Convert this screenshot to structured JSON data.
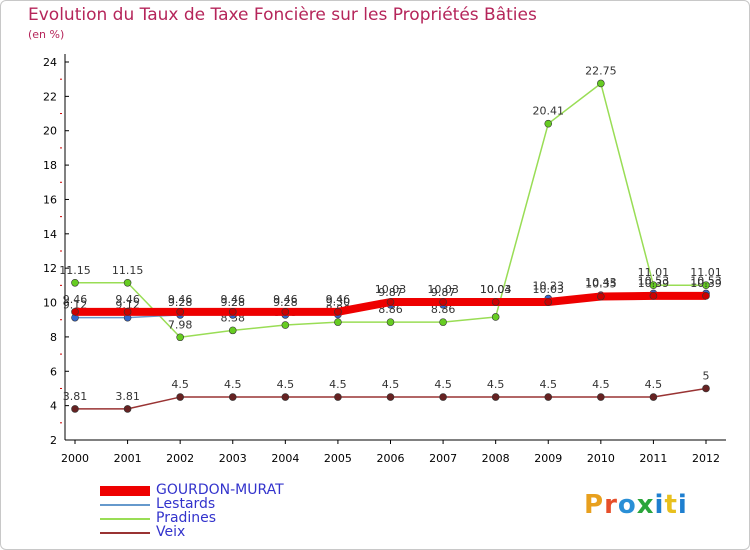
{
  "header": {
    "title": "Evolution du Taux de Taxe Foncière sur les Propriétés Bâties",
    "subtitle": "(en %)"
  },
  "logo": {
    "text": "Proxiti"
  },
  "chart_data": {
    "type": "line",
    "title": "Evolution du Taux de Taxe Foncière sur les Propriétés Bâties",
    "ylabel": "(en %)",
    "xlabel": "",
    "ylim": [
      2,
      24
    ],
    "yticks": [
      2,
      4,
      6,
      8,
      10,
      12,
      14,
      16,
      18,
      20,
      22,
      24
    ],
    "grid": false,
    "legend_position": "bottom-left",
    "categories": [
      "2000",
      "2001",
      "2002",
      "2003",
      "2004",
      "2005",
      "2006",
      "2007",
      "2008",
      "2009",
      "2010",
      "2011",
      "2012"
    ],
    "series": [
      {
        "name": "Pradines",
        "color": "#99dd55",
        "marker": "#66cc22",
        "values": [
          11.15,
          11.15,
          7.98,
          8.38,
          8.69,
          8.86,
          8.86,
          8.86,
          9.16,
          20.41,
          22.75,
          11.01,
          11.01
        ],
        "labels": [
          "11.15",
          "11.15",
          "7.98",
          "8.38",
          "8.69",
          "8.86",
          "8.86",
          "8.86",
          "",
          "20.41",
          "22.75",
          "11.01",
          "11.01"
        ]
      },
      {
        "name": "Lestards",
        "color": "#6699cc",
        "marker": "#3366cc",
        "values": [
          9.12,
          9.12,
          9.28,
          9.28,
          9.28,
          9.3,
          9.87,
          9.87,
          10.04,
          10.23,
          10.43,
          10.53,
          10.53
        ],
        "labels": [
          "9.12",
          "9.12",
          "9.28",
          "9.28",
          "9.28",
          "9.30",
          "9.87",
          "9.87",
          "10.04",
          "10.23",
          "10.43",
          "10.53",
          "10.53"
        ]
      },
      {
        "name": "GOURDON-MURAT",
        "color": "#ee0000",
        "marker": "#cc0000",
        "width": 8,
        "values": [
          9.46,
          9.46,
          9.46,
          9.46,
          9.46,
          9.46,
          10.03,
          10.03,
          10.03,
          10.03,
          10.35,
          10.39,
          10.39
        ],
        "labels": [
          "9.46",
          "9.46",
          "9.46",
          "9.46",
          "9.46",
          "9.46",
          "10.03",
          "10.03",
          "10.03",
          "10.03",
          "10.35",
          "10.39",
          "10.39"
        ]
      },
      {
        "name": "Veix",
        "color": "#993333",
        "marker": "#662222",
        "values": [
          3.81,
          3.81,
          4.5,
          4.5,
          4.5,
          4.5,
          4.5,
          4.5,
          4.5,
          4.5,
          4.5,
          4.5,
          5
        ],
        "labels": [
          "3.81",
          "3.81",
          "4.5",
          "4.5",
          "4.5",
          "4.5",
          "4.5",
          "4.5",
          "4.5",
          "4.5",
          "4.5",
          "4.5",
          "5"
        ]
      }
    ],
    "legend_order": [
      "GOURDON-MURAT",
      "Lestards",
      "Pradines",
      "Veix"
    ]
  }
}
